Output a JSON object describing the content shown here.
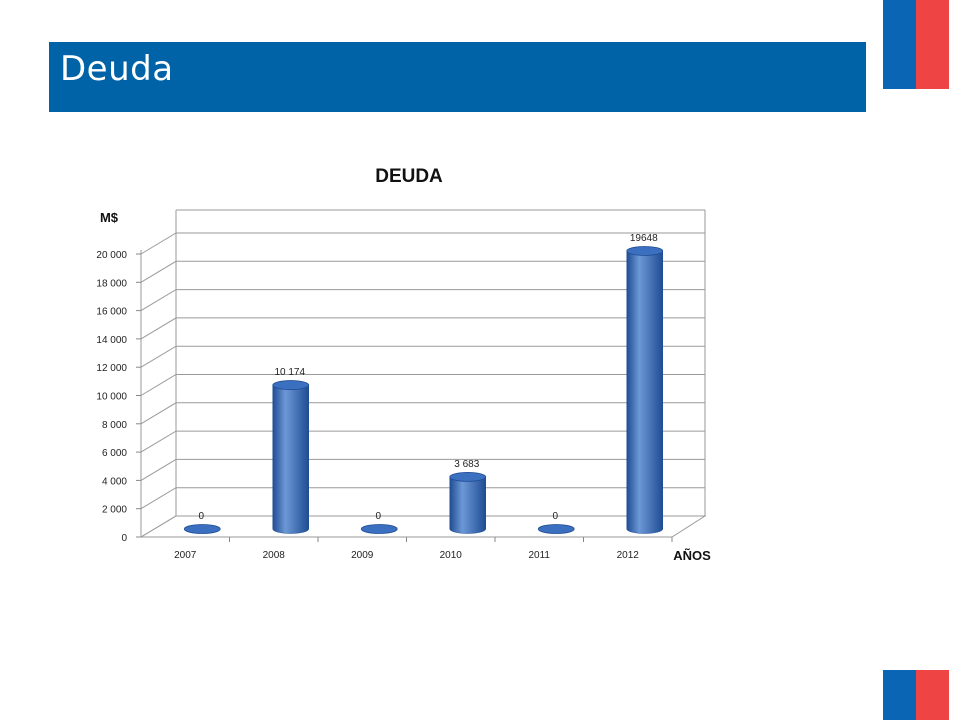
{
  "page": {
    "title": "Deuda",
    "colors": {
      "banner": "#0062a7",
      "flag_blue": "#0a66b5",
      "flag_red": "#ef4444",
      "bar": "#3b6fc0",
      "bar_dark": "#1f4d94",
      "bar_light": "#6d98d6"
    }
  },
  "chart_data": {
    "type": "bar",
    "title": "DEUDA",
    "ylabel": "M$",
    "xlabel": "AÑOS",
    "categories": [
      "2007",
      "2008",
      "2009",
      "2010",
      "2011",
      "2012"
    ],
    "values": [
      0,
      10174,
      0,
      3683,
      0,
      19648
    ],
    "data_labels": [
      "0",
      "10 174",
      "0",
      "3 683",
      "0",
      "19648"
    ],
    "ylim": [
      0,
      20000
    ],
    "yticks": [
      0,
      2000,
      4000,
      6000,
      8000,
      10000,
      12000,
      14000,
      16000,
      18000,
      20000
    ],
    "ytick_labels": [
      "0",
      "2 000",
      "4 000",
      "6 000",
      "8 000",
      "10 000",
      "12 000",
      "14 000",
      "16 000",
      "18 000",
      "20 000"
    ],
    "grid": true,
    "style": "3d-cylinder"
  }
}
